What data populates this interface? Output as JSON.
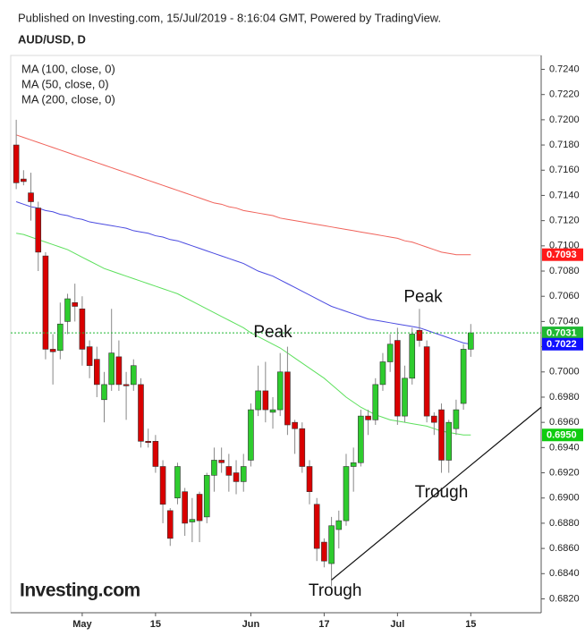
{
  "published": "Published on Investing.com, 15/Jul/2019 - 8:16:04 GMT, Powered by TradingView.",
  "logo": "Investing.com",
  "chart_data": {
    "type": "candlestick",
    "title": "AUD/USD, D",
    "up_color": "#2ecc2e",
    "down_color": "#d90000",
    "ohlc": {
      "open": [
        0.718,
        0.7153,
        0.7142,
        0.713,
        0.7092,
        0.7018,
        0.7017,
        0.704,
        0.7055,
        0.705,
        0.702,
        0.701,
        0.6978,
        0.699,
        0.7012,
        0.699,
        0.699,
        0.699,
        0.6945,
        0.6945,
        0.6925,
        0.689,
        0.69,
        0.6905,
        0.6881,
        0.6903,
        0.6885,
        0.6918,
        0.693,
        0.6925,
        0.692,
        0.6913,
        0.693,
        0.697,
        0.6985,
        0.6968,
        0.697,
        0.7,
        0.696,
        0.6955,
        0.6925,
        0.6895,
        0.6865,
        0.6848,
        0.6875,
        0.6882,
        0.6925,
        0.6928,
        0.6965,
        0.6962,
        0.699,
        0.7008,
        0.7025,
        0.6965,
        0.6995,
        0.7033,
        0.702,
        0.6965,
        0.697,
        0.693,
        0.6955,
        0.6975,
        0.7018
      ],
      "high": [
        0.72,
        0.716,
        0.7158,
        0.7135,
        0.7095,
        0.703,
        0.7055,
        0.7062,
        0.707,
        0.706,
        0.7025,
        0.702,
        0.7,
        0.705,
        0.7025,
        0.7,
        0.701,
        0.6995,
        0.6955,
        0.695,
        0.693,
        0.6892,
        0.6928,
        0.6908,
        0.69,
        0.6905,
        0.692,
        0.694,
        0.694,
        0.6935,
        0.693,
        0.6935,
        0.6975,
        0.7005,
        0.7008,
        0.698,
        0.7015,
        0.702,
        0.6962,
        0.696,
        0.693,
        0.69,
        0.6868,
        0.6885,
        0.689,
        0.6935,
        0.694,
        0.697,
        0.697,
        0.6995,
        0.7015,
        0.703,
        0.7035,
        0.7005,
        0.7035,
        0.705,
        0.7025,
        0.6968,
        0.6975,
        0.6962,
        0.6978,
        0.7022,
        0.7038
      ],
      "low": [
        0.7145,
        0.7148,
        0.712,
        0.708,
        0.701,
        0.699,
        0.701,
        0.703,
        0.704,
        0.7005,
        0.6995,
        0.698,
        0.696,
        0.6985,
        0.6985,
        0.6962,
        0.6985,
        0.694,
        0.694,
        0.692,
        0.688,
        0.6862,
        0.6895,
        0.687,
        0.6865,
        0.6865,
        0.688,
        0.6905,
        0.692,
        0.6905,
        0.6903,
        0.6905,
        0.6925,
        0.6965,
        0.696,
        0.6955,
        0.6965,
        0.695,
        0.6935,
        0.692,
        0.6895,
        0.685,
        0.6845,
        0.683,
        0.686,
        0.6878,
        0.6905,
        0.6925,
        0.695,
        0.6958,
        0.6985,
        0.7,
        0.6958,
        0.696,
        0.699,
        0.702,
        0.696,
        0.695,
        0.692,
        0.692,
        0.695,
        0.697,
        0.7012
      ],
      "close": [
        0.715,
        0.7151,
        0.7135,
        0.7095,
        0.7018,
        0.7016,
        0.7038,
        0.7058,
        0.7052,
        0.7018,
        0.7005,
        0.699,
        0.699,
        0.7015,
        0.699,
        0.6989,
        0.7005,
        0.6945,
        0.6944,
        0.6925,
        0.6895,
        0.6868,
        0.6925,
        0.688,
        0.6883,
        0.6882,
        0.6918,
        0.693,
        0.6928,
        0.6918,
        0.6913,
        0.6925,
        0.697,
        0.6985,
        0.697,
        0.697,
        0.7,
        0.6958,
        0.6955,
        0.6925,
        0.6905,
        0.686,
        0.685,
        0.6878,
        0.6882,
        0.6925,
        0.6928,
        0.6965,
        0.6962,
        0.699,
        0.7008,
        0.7022,
        0.6965,
        0.6995,
        0.703,
        0.7025,
        0.6965,
        0.696,
        0.693,
        0.696,
        0.697,
        0.7018,
        0.7031
      ]
    },
    "series": [
      {
        "name": "MA (100, close, 0)",
        "color": "#4a4ae0",
        "values": [
          0.7135,
          0.7133,
          0.7131,
          0.713,
          0.7128,
          0.7127,
          0.7125,
          0.7124,
          0.7122,
          0.7121,
          0.7119,
          0.7118,
          0.7117,
          0.7116,
          0.7115,
          0.7114,
          0.7112,
          0.7111,
          0.711,
          0.7108,
          0.7107,
          0.7105,
          0.7104,
          0.7102,
          0.71,
          0.7098,
          0.7096,
          0.7094,
          0.7092,
          0.709,
          0.7088,
          0.7086,
          0.7083,
          0.708,
          0.7078,
          0.7076,
          0.7073,
          0.707,
          0.7067,
          0.7064,
          0.7061,
          0.7058,
          0.7055,
          0.7052,
          0.705,
          0.7048,
          0.7046,
          0.7044,
          0.7042,
          0.7041,
          0.704,
          0.7039,
          0.7038,
          0.7037,
          0.7036,
          0.7035,
          0.7033,
          0.7031,
          0.7029,
          0.7027,
          0.7025,
          0.7023,
          0.7022
        ]
      },
      {
        "name": "MA (50, close, 0)",
        "color": "#5de05d",
        "values": [
          0.711,
          0.7109,
          0.7107,
          0.7105,
          0.7103,
          0.7101,
          0.7099,
          0.7097,
          0.7094,
          0.7091,
          0.7088,
          0.7085,
          0.7082,
          0.708,
          0.7078,
          0.7076,
          0.7074,
          0.7072,
          0.707,
          0.7068,
          0.7066,
          0.7064,
          0.7062,
          0.7059,
          0.7056,
          0.7053,
          0.705,
          0.7047,
          0.7044,
          0.7041,
          0.7038,
          0.7035,
          0.7031,
          0.7028,
          0.7025,
          0.7022,
          0.7019,
          0.7015,
          0.7011,
          0.7007,
          0.7003,
          0.6999,
          0.6995,
          0.699,
          0.6985,
          0.698,
          0.6976,
          0.6972,
          0.6969,
          0.6966,
          0.6964,
          0.6962,
          0.6961,
          0.696,
          0.6959,
          0.6958,
          0.6957,
          0.6955,
          0.6953,
          0.6952,
          0.6951,
          0.695,
          0.695
        ]
      },
      {
        "name": "MA (200, close, 0)",
        "color": "#f0625a",
        "values": [
          0.7188,
          0.7186,
          0.7184,
          0.7182,
          0.718,
          0.7178,
          0.7176,
          0.7174,
          0.7172,
          0.717,
          0.7168,
          0.7166,
          0.7164,
          0.7162,
          0.716,
          0.7158,
          0.7156,
          0.7154,
          0.7152,
          0.715,
          0.7148,
          0.7146,
          0.7144,
          0.7142,
          0.714,
          0.7138,
          0.7136,
          0.7134,
          0.7133,
          0.7131,
          0.713,
          0.7128,
          0.7127,
          0.7126,
          0.7125,
          0.7124,
          0.7122,
          0.7121,
          0.712,
          0.7119,
          0.7118,
          0.7117,
          0.7116,
          0.7115,
          0.7114,
          0.7113,
          0.7112,
          0.7111,
          0.711,
          0.7109,
          0.7108,
          0.7107,
          0.7106,
          0.7104,
          0.7103,
          0.7101,
          0.7099,
          0.7097,
          0.7095,
          0.7094,
          0.7093,
          0.7093,
          0.7093
        ]
      }
    ],
    "xlim": [
      -0.75,
      71.6
    ],
    "xticks": [
      {
        "value": 9,
        "label": "May"
      },
      {
        "value": 19,
        "label": "15"
      },
      {
        "value": 32,
        "label": "Jun"
      },
      {
        "value": 42,
        "label": "17"
      },
      {
        "value": 52,
        "label": "Jul"
      },
      {
        "value": 62,
        "label": "15"
      }
    ],
    "ylim": [
      0.6809,
      0.7251
    ],
    "yticks": [
      {
        "value": 0.682,
        "label": "0.6820"
      },
      {
        "value": 0.684,
        "label": "0.6840"
      },
      {
        "value": 0.686,
        "label": "0.6860"
      },
      {
        "value": 0.688,
        "label": "0.6880"
      },
      {
        "value": 0.69,
        "label": "0.6900"
      },
      {
        "value": 0.692,
        "label": "0.6920"
      },
      {
        "value": 0.694,
        "label": "0.6940"
      },
      {
        "value": 0.696,
        "label": "0.6960"
      },
      {
        "value": 0.698,
        "label": "0.6980"
      },
      {
        "value": 0.7,
        "label": "0.7000"
      },
      {
        "value": 0.702,
        "label": "0.7020"
      },
      {
        "value": 0.704,
        "label": "0.7040"
      },
      {
        "value": 0.706,
        "label": "0.7060"
      },
      {
        "value": 0.708,
        "label": "0.7080"
      },
      {
        "value": 0.71,
        "label": "0.7100"
      },
      {
        "value": 0.712,
        "label": "0.7120"
      },
      {
        "value": 0.714,
        "label": "0.7140"
      },
      {
        "value": 0.716,
        "label": "0.7160"
      },
      {
        "value": 0.718,
        "label": "0.7180"
      },
      {
        "value": 0.72,
        "label": "0.7200"
      },
      {
        "value": 0.722,
        "label": "0.7220"
      },
      {
        "value": 0.724,
        "label": "0.7240"
      }
    ],
    "price_tags": [
      {
        "value": 0.7093,
        "label": "0.7093",
        "color": "#ff1a1a"
      },
      {
        "value": 0.7031,
        "label": "0.7031",
        "color": "#1fb832"
      },
      {
        "value": 0.7022,
        "label": "0.7022",
        "color": "#1010ff"
      },
      {
        "value": 0.695,
        "label": "0.6950",
        "color": "#10cc10"
      }
    ],
    "price_line": {
      "value": 0.7031,
      "color": "#1fb832"
    },
    "trendline": {
      "x": [
        43,
        71.6
      ],
      "y": [
        0.6835,
        0.6972
      ],
      "color": "#111111"
    },
    "annotations": [
      {
        "text": "Peak",
        "x": 35,
        "y": 0.7031
      },
      {
        "text": "Peak",
        "x": 55.5,
        "y": 0.7059
      },
      {
        "text": "Trough",
        "x": 58,
        "y": 0.6904
      },
      {
        "text": "Trough",
        "x": 43.5,
        "y": 0.6826
      }
    ]
  }
}
